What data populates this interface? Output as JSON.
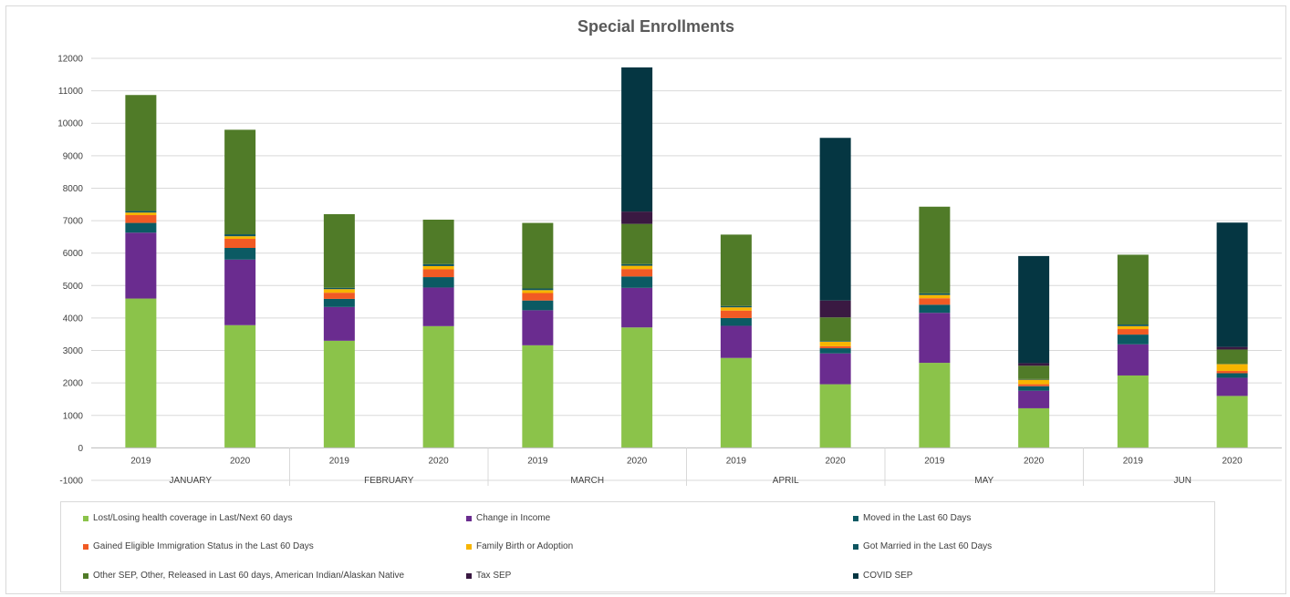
{
  "chart_data": {
    "type": "bar",
    "stacked": true,
    "title": "Special Enrollments",
    "xlabel": "",
    "ylabel": "",
    "ylim": [
      -1000,
      12000
    ],
    "yticks": [
      -1000,
      0,
      1000,
      2000,
      3000,
      4000,
      5000,
      6000,
      7000,
      8000,
      9000,
      10000,
      11000,
      12000
    ],
    "grid": true,
    "legend_position": "bottom",
    "groups": [
      "JANUARY",
      "FEBRUARY",
      "MARCH",
      "APRIL",
      "MAY",
      "JUN"
    ],
    "categories": [
      "2019",
      "2020",
      "2019",
      "2020",
      "2019",
      "2020",
      "2019",
      "2020",
      "2019",
      "2020",
      "2019",
      "2020"
    ],
    "series": [
      {
        "name": "Lost/Losing health coverage in Last/Next 60 days",
        "color": "#8bc34a",
        "values": [
          4600,
          3780,
          3300,
          3750,
          3160,
          3710,
          2770,
          1960,
          2620,
          1220,
          2230,
          1600
        ]
      },
      {
        "name": "Change in Income",
        "color": "#6a2c8f",
        "values": [
          2030,
          2020,
          1040,
          1190,
          1080,
          1220,
          990,
          950,
          1540,
          540,
          960,
          560
        ]
      },
      {
        "name": "Moved in the Last 60 Days",
        "color": "#0b5a63",
        "values": [
          300,
          360,
          250,
          320,
          300,
          350,
          240,
          160,
          250,
          140,
          300,
          140
        ]
      },
      {
        "name": "Gained Eligible Immigration Status in the Last 60 Days",
        "color": "#f15a24",
        "values": [
          240,
          280,
          190,
          240,
          230,
          230,
          230,
          60,
          200,
          60,
          170,
          70
        ]
      },
      {
        "name": "Family Birth or Adoption",
        "color": "#f7b500",
        "values": [
          80,
          80,
          110,
          100,
          90,
          100,
          100,
          140,
          100,
          140,
          90,
          210
        ]
      },
      {
        "name": "Got Married in the Last 60 Days",
        "color": "#0e5560",
        "values": [
          50,
          60,
          40,
          60,
          50,
          50,
          40,
          20,
          50,
          20,
          50,
          10
        ]
      },
      {
        "name": "Other SEP, Other, Released in Last 60 days, American Indian/Alaskan Native",
        "color": "#507b28",
        "values": [
          3570,
          3220,
          2270,
          1370,
          2020,
          1240,
          2200,
          730,
          2670,
          410,
          2150,
          440
        ]
      },
      {
        "name": "Tax SEP",
        "color": "#3a1942",
        "values": [
          0,
          0,
          0,
          0,
          0,
          380,
          0,
          520,
          0,
          80,
          0,
          80
        ]
      },
      {
        "name": "COVID SEP",
        "color": "#053642",
        "values": [
          0,
          0,
          0,
          0,
          0,
          4440,
          0,
          5010,
          0,
          3300,
          0,
          3830
        ]
      }
    ]
  }
}
